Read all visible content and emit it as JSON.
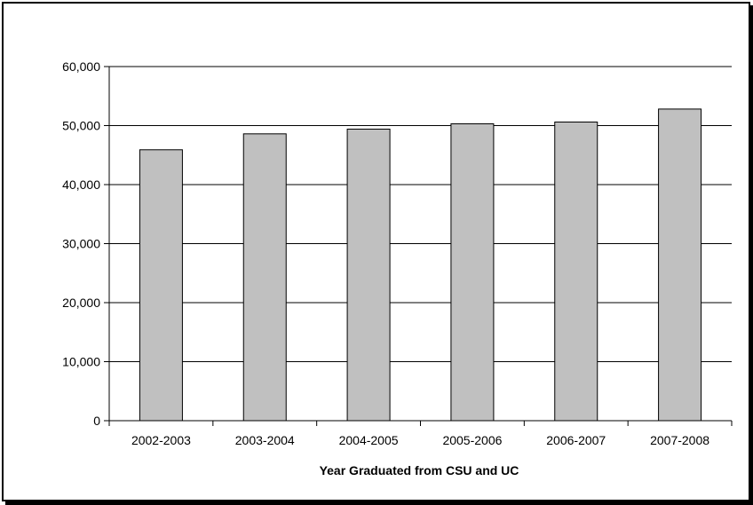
{
  "chart_data": {
    "type": "bar",
    "categories": [
      "2002-2003",
      "2003-2004",
      "2004-2005",
      "2005-2006",
      "2006-2007",
      "2007-2008"
    ],
    "values": [
      45900,
      48600,
      49400,
      50300,
      50600,
      52800
    ],
    "xlabel": "Year Graduated from CSU and UC",
    "ylabel": "",
    "ylim": [
      0,
      60000
    ],
    "yticks": [
      "0",
      "10,000",
      "20,000",
      "30,000",
      "40,000",
      "50,000",
      "60,000"
    ],
    "grid": true,
    "legend": "none",
    "colors": {
      "bar": "#c0c0c0",
      "bar_stroke": "#000000",
      "grid": "#000000"
    }
  }
}
